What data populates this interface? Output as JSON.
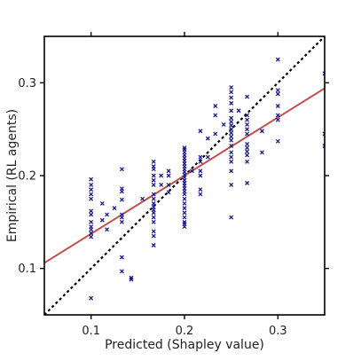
{
  "chart_data": {
    "type": "scatter",
    "xlabel": "Predicted (Shapley value)",
    "ylabel": "Empirical (RL agents)",
    "xlim": [
      0.05,
      0.35
    ],
    "ylim": [
      0.05,
      0.35
    ],
    "xticks": [
      {
        "value": 0.1,
        "label": "0.1"
      },
      {
        "value": 0.2,
        "label": "0.2"
      },
      {
        "value": 0.3,
        "label": "0.3"
      }
    ],
    "yticks": [
      {
        "value": 0.1,
        "label": "0.1"
      },
      {
        "value": 0.2,
        "label": "0.2"
      },
      {
        "value": 0.3,
        "label": "0.3"
      }
    ],
    "grid": false,
    "marker_color": "#1a1a8c",
    "fit_color": "#c0504d",
    "diagonal_color": "#000000",
    "fit_line": {
      "x": [
        0.05,
        0.35
      ],
      "y": [
        0.106,
        0.294
      ]
    },
    "identity_line": {
      "x": [
        0.05,
        0.35
      ],
      "y": [
        0.05,
        0.35
      ]
    },
    "points": [
      [
        0.1,
        0.068
      ],
      [
        0.1,
        0.134
      ],
      [
        0.1,
        0.138
      ],
      [
        0.1,
        0.142
      ],
      [
        0.1,
        0.145
      ],
      [
        0.1,
        0.15
      ],
      [
        0.1,
        0.158
      ],
      [
        0.1,
        0.162
      ],
      [
        0.1,
        0.175
      ],
      [
        0.1,
        0.18
      ],
      [
        0.1,
        0.185
      ],
      [
        0.1,
        0.19
      ],
      [
        0.1,
        0.196
      ],
      [
        0.112,
        0.17
      ],
      [
        0.112,
        0.152
      ],
      [
        0.117,
        0.142
      ],
      [
        0.117,
        0.158
      ],
      [
        0.125,
        0.165
      ],
      [
        0.133,
        0.097
      ],
      [
        0.133,
        0.112
      ],
      [
        0.133,
        0.15
      ],
      [
        0.133,
        0.155
      ],
      [
        0.133,
        0.158
      ],
      [
        0.133,
        0.174
      ],
      [
        0.133,
        0.183
      ],
      [
        0.133,
        0.186
      ],
      [
        0.133,
        0.207
      ],
      [
        0.143,
        0.09
      ],
      [
        0.143,
        0.088
      ],
      [
        0.155,
        0.175
      ],
      [
        0.167,
        0.125
      ],
      [
        0.167,
        0.135
      ],
      [
        0.167,
        0.14
      ],
      [
        0.167,
        0.15
      ],
      [
        0.167,
        0.155
      ],
      [
        0.167,
        0.16
      ],
      [
        0.167,
        0.163
      ],
      [
        0.167,
        0.166
      ],
      [
        0.167,
        0.17
      ],
      [
        0.167,
        0.175
      ],
      [
        0.167,
        0.18
      ],
      [
        0.167,
        0.19
      ],
      [
        0.167,
        0.195
      ],
      [
        0.167,
        0.2
      ],
      [
        0.167,
        0.207
      ],
      [
        0.167,
        0.21
      ],
      [
        0.167,
        0.215
      ],
      [
        0.175,
        0.19
      ],
      [
        0.175,
        0.2
      ],
      [
        0.183,
        0.182
      ],
      [
        0.183,
        0.19
      ],
      [
        0.183,
        0.2
      ],
      [
        0.183,
        0.205
      ],
      [
        0.2,
        0.145
      ],
      [
        0.2,
        0.148
      ],
      [
        0.2,
        0.15
      ],
      [
        0.2,
        0.155
      ],
      [
        0.2,
        0.16
      ],
      [
        0.2,
        0.165
      ],
      [
        0.2,
        0.17
      ],
      [
        0.2,
        0.175
      ],
      [
        0.2,
        0.18
      ],
      [
        0.2,
        0.183
      ],
      [
        0.2,
        0.186
      ],
      [
        0.2,
        0.189
      ],
      [
        0.2,
        0.192
      ],
      [
        0.2,
        0.195
      ],
      [
        0.2,
        0.198
      ],
      [
        0.2,
        0.201
      ],
      [
        0.2,
        0.204
      ],
      [
        0.2,
        0.207
      ],
      [
        0.2,
        0.21
      ],
      [
        0.2,
        0.213
      ],
      [
        0.2,
        0.216
      ],
      [
        0.2,
        0.219
      ],
      [
        0.2,
        0.222
      ],
      [
        0.2,
        0.225
      ],
      [
        0.2,
        0.228
      ],
      [
        0.2,
        0.23
      ],
      [
        0.208,
        0.205
      ],
      [
        0.217,
        0.18
      ],
      [
        0.217,
        0.185
      ],
      [
        0.217,
        0.2
      ],
      [
        0.217,
        0.205
      ],
      [
        0.217,
        0.215
      ],
      [
        0.217,
        0.22
      ],
      [
        0.217,
        0.248
      ],
      [
        0.225,
        0.22
      ],
      [
        0.225,
        0.24
      ],
      [
        0.233,
        0.245
      ],
      [
        0.233,
        0.265
      ],
      [
        0.233,
        0.275
      ],
      [
        0.242,
        0.255
      ],
      [
        0.25,
        0.155
      ],
      [
        0.25,
        0.19
      ],
      [
        0.25,
        0.205
      ],
      [
        0.25,
        0.215
      ],
      [
        0.25,
        0.22
      ],
      [
        0.25,
        0.225
      ],
      [
        0.25,
        0.232
      ],
      [
        0.25,
        0.238
      ],
      [
        0.25,
        0.242
      ],
      [
        0.25,
        0.246
      ],
      [
        0.25,
        0.25
      ],
      [
        0.25,
        0.254
      ],
      [
        0.25,
        0.258
      ],
      [
        0.25,
        0.262
      ],
      [
        0.25,
        0.27
      ],
      [
        0.25,
        0.278
      ],
      [
        0.25,
        0.284
      ],
      [
        0.25,
        0.29
      ],
      [
        0.25,
        0.295
      ],
      [
        0.258,
        0.27
      ],
      [
        0.267,
        0.192
      ],
      [
        0.267,
        0.215
      ],
      [
        0.267,
        0.222
      ],
      [
        0.267,
        0.226
      ],
      [
        0.267,
        0.23
      ],
      [
        0.267,
        0.234
      ],
      [
        0.267,
        0.245
      ],
      [
        0.267,
        0.25
      ],
      [
        0.267,
        0.255
      ],
      [
        0.267,
        0.26
      ],
      [
        0.267,
        0.265
      ],
      [
        0.267,
        0.285
      ],
      [
        0.283,
        0.225
      ],
      [
        0.283,
        0.248
      ],
      [
        0.3,
        0.237
      ],
      [
        0.3,
        0.26
      ],
      [
        0.3,
        0.265
      ],
      [
        0.3,
        0.275
      ],
      [
        0.3,
        0.288
      ],
      [
        0.3,
        0.292
      ],
      [
        0.3,
        0.325
      ],
      [
        0.35,
        0.232
      ],
      [
        0.35,
        0.245
      ],
      [
        0.35,
        0.31
      ]
    ]
  }
}
